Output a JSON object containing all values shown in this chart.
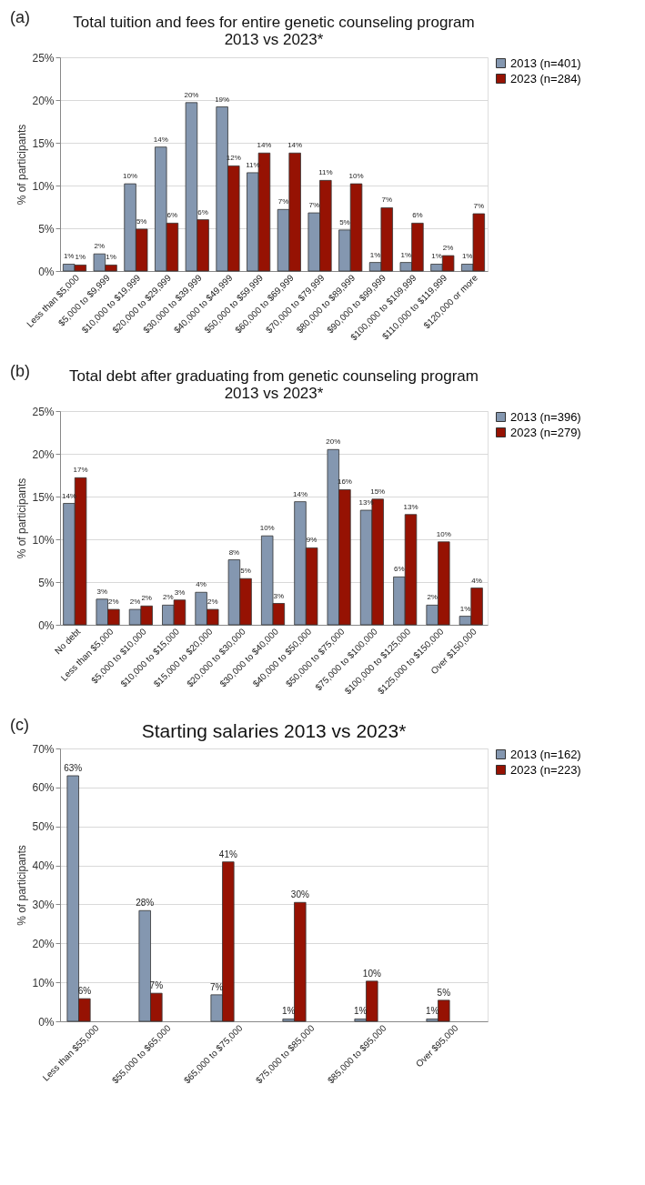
{
  "chart_data": [
    {
      "type": "bar",
      "title": "Total tuition and fees for entire genetic counseling program 2013 vs 2023*",
      "ylabel": "% of participants",
      "annotations": [
        "(a)"
      ],
      "categories": [
        "Less than $5,000",
        "$5,000 to $9,999",
        "$10,000 to $19,999",
        "$20,000 to $29,999",
        "$30,000 to $39,999",
        "$40,000 to $49,999",
        "$50,000 to $59,999",
        "$60,000 to $69,999",
        "$70,000 to $79,999",
        "$80,000 to $89,999",
        "$90,000 to $99,999",
        "$100,000 to $109,999",
        "$110,000 to $119,999",
        "$120,000 or more"
      ],
      "series": [
        {
          "name": "2013 (n=401)",
          "color": "#8497b0",
          "values": [
            0.8,
            2.0,
            10.2,
            14.5,
            19.7,
            19.2,
            11.5,
            7.2,
            6.8,
            4.8,
            1.0,
            1.0,
            0.8,
            0.8
          ],
          "value_labels": [
            "1%",
            "2%",
            "10%",
            "14%",
            "20%",
            "19%",
            "11%",
            "7%",
            "7%",
            "5%",
            "1%",
            "1%",
            "1%",
            "1%"
          ]
        },
        {
          "name": "2023 (n=284)",
          "color": "#961203",
          "values": [
            0.7,
            0.7,
            4.9,
            5.6,
            6.0,
            12.3,
            13.8,
            13.8,
            10.6,
            10.2,
            7.4,
            5.6,
            1.8,
            6.7
          ],
          "value_labels": [
            "1%",
            "1%",
            "5%",
            "6%",
            "6%",
            "12%",
            "14%",
            "14%",
            "11%",
            "10%",
            "7%",
            "6%",
            "2%",
            "7%"
          ]
        }
      ],
      "ylim": [
        0,
        25
      ],
      "yticks": [
        {
          "value": 0,
          "label": "0%"
        },
        {
          "value": 5,
          "label": "5%"
        },
        {
          "value": 10,
          "label": "10%"
        },
        {
          "value": 15,
          "label": "15%"
        },
        {
          "value": 20,
          "label": "20%"
        },
        {
          "value": 25,
          "label": "25%"
        }
      ],
      "grid": "y",
      "legend": "right"
    },
    {
      "type": "bar",
      "title": "Total debt after graduating from genetic counseling program 2013 vs 2023*",
      "ylabel": "% of participants",
      "annotations": [
        "(b)"
      ],
      "categories": [
        "No debt",
        "Less than $5,000",
        "$5,000 to $10,000",
        "$10,000 to $15,000",
        "$15,000 to $20,000",
        "$20,000 to $30,000",
        "$30,000 to $40,000",
        "$40,000 to $50,000",
        "$50,000 to $75,000",
        "$75,000 to $100,000",
        "$100,000 to $125,000",
        "$125,000 to $150,000",
        "Over $150,000"
      ],
      "series": [
        {
          "name": "2013 (n=396)",
          "color": "#8497b0",
          "values": [
            14.2,
            3.0,
            1.8,
            2.3,
            3.8,
            7.6,
            10.4,
            14.4,
            20.5,
            13.4,
            5.6,
            2.3,
            1.0
          ],
          "value_labels": [
            "14%",
            "3%",
            "2%",
            "2%",
            "4%",
            "8%",
            "10%",
            "14%",
            "20%",
            "13%",
            "6%",
            "2%",
            "1%"
          ]
        },
        {
          "name": "2023 (n=279)",
          "color": "#961203",
          "values": [
            17.2,
            1.8,
            2.2,
            2.9,
            1.8,
            5.4,
            2.5,
            9.0,
            15.8,
            14.7,
            12.9,
            9.7,
            4.3
          ],
          "value_labels": [
            "17%",
            "2%",
            "2%",
            "3%",
            "2%",
            "5%",
            "3%",
            "9%",
            "16%",
            "15%",
            "13%",
            "10%",
            "4%"
          ]
        }
      ],
      "ylim": [
        0,
        25
      ],
      "yticks": [
        {
          "value": 0,
          "label": "0%"
        },
        {
          "value": 5,
          "label": "5%"
        },
        {
          "value": 10,
          "label": "10%"
        },
        {
          "value": 15,
          "label": "15%"
        },
        {
          "value": 20,
          "label": "20%"
        },
        {
          "value": 25,
          "label": "25%"
        }
      ],
      "grid": "y",
      "legend": "right"
    },
    {
      "type": "bar",
      "title": "Starting salaries 2013 vs 2023*",
      "ylabel": "% of participants",
      "annotations": [
        "(c)"
      ],
      "categories": [
        "Less than $55,000",
        "$55,000 to $65,000",
        "$65,000 to $75,000",
        "$75,000 to $85,000",
        "$85,000 to $95,000",
        "Over $95,000"
      ],
      "series": [
        {
          "name": "2013 (n=162)",
          "color": "#8497b0",
          "values": [
            63.0,
            28.4,
            6.8,
            0.6,
            0.6,
            0.6
          ],
          "value_labels": [
            "63%",
            "28%",
            "7%",
            "1%",
            "1%",
            "1%"
          ]
        },
        {
          "name": "2023 (n=223)",
          "color": "#961203",
          "values": [
            5.8,
            7.2,
            40.9,
            30.5,
            10.3,
            5.4
          ],
          "value_labels": [
            "6%",
            "7%",
            "41%",
            "30%",
            "10%",
            "5%"
          ]
        }
      ],
      "ylim": [
        0,
        70
      ],
      "yticks": [
        {
          "value": 0,
          "label": "0%"
        },
        {
          "value": 10,
          "label": "10%"
        },
        {
          "value": 20,
          "label": "20%"
        },
        {
          "value": 30,
          "label": "30%"
        },
        {
          "value": 40,
          "label": "40%"
        },
        {
          "value": 50,
          "label": "50%"
        },
        {
          "value": 60,
          "label": "60%"
        },
        {
          "value": 70,
          "label": "70%"
        }
      ],
      "grid": "y",
      "legend": "right"
    }
  ]
}
